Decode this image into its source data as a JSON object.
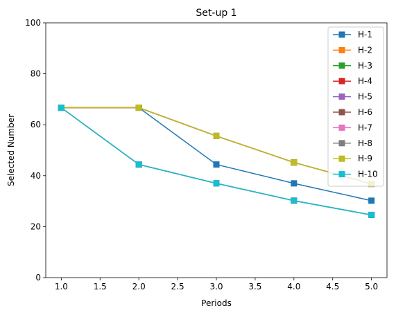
{
  "chart_data": {
    "type": "line",
    "title": "Set-up 1",
    "xlabel": "Periods",
    "ylabel": "Selected Number",
    "xlim": [
      0.8,
      5.2
    ],
    "ylim": [
      0,
      100
    ],
    "xticks": [
      1.0,
      1.5,
      2.0,
      2.5,
      3.0,
      3.5,
      4.0,
      4.5,
      5.0
    ],
    "xtick_labels": [
      "1.0",
      "1.5",
      "2.0",
      "2.5",
      "3.0",
      "3.5",
      "4.0",
      "4.5",
      "5.0"
    ],
    "yticks": [
      0,
      20,
      40,
      60,
      80,
      100
    ],
    "ytick_labels": [
      "0",
      "20",
      "40",
      "60",
      "80",
      "100"
    ],
    "grid": false,
    "legend_position": "top-right",
    "marker": "square",
    "x": [
      1,
      2,
      3,
      4,
      5
    ],
    "series": [
      {
        "name": "H-1",
        "color": "#1f77b4",
        "values": [
          66.7,
          66.7,
          44.4,
          37.0,
          30.2
        ]
      },
      {
        "name": "H-2",
        "color": "#ff7f0e",
        "values": [
          66.7,
          66.7,
          55.6,
          45.2,
          36.8
        ]
      },
      {
        "name": "H-3",
        "color": "#2ca02c",
        "values": [
          66.7,
          44.4,
          37.0,
          30.2,
          24.6
        ]
      },
      {
        "name": "H-4",
        "color": "#d62728",
        "values": [
          66.7,
          66.7,
          55.6,
          45.2,
          36.8
        ]
      },
      {
        "name": "H-5",
        "color": "#9467bd",
        "values": [
          66.7,
          44.4,
          37.0,
          30.2,
          24.6
        ]
      },
      {
        "name": "H-6",
        "color": "#8c564b",
        "values": [
          66.7,
          66.7,
          55.6,
          45.2,
          36.8
        ]
      },
      {
        "name": "H-7",
        "color": "#e377c2",
        "values": [
          66.7,
          44.4,
          37.0,
          30.2,
          24.6
        ]
      },
      {
        "name": "H-8",
        "color": "#7f7f7f",
        "values": [
          66.7,
          44.4,
          37.0,
          30.2,
          24.6
        ]
      },
      {
        "name": "H-9",
        "color": "#bcbd22",
        "values": [
          66.7,
          66.7,
          55.6,
          45.2,
          36.8
        ]
      },
      {
        "name": "H-10",
        "color": "#17becf",
        "values": [
          66.7,
          44.4,
          37.0,
          30.2,
          24.6
        ]
      }
    ]
  }
}
